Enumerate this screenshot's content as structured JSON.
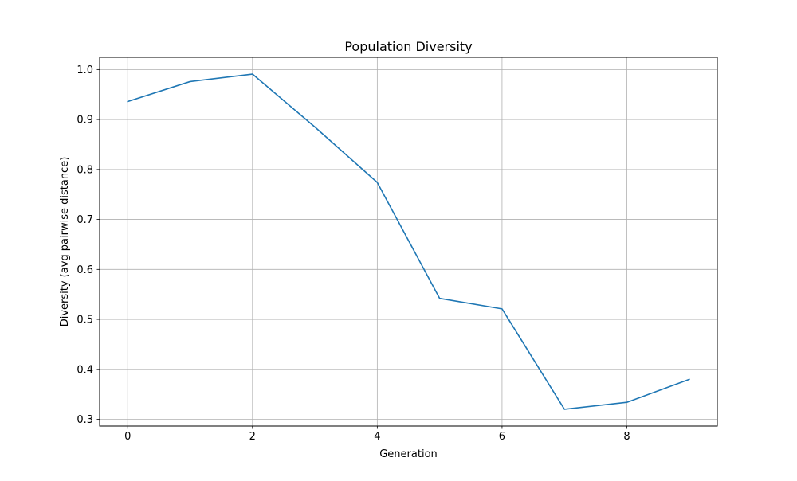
{
  "chart_data": {
    "type": "line",
    "title": "Population Diversity",
    "xlabel": "Generation",
    "ylabel": "Diversity (avg pairwise distance)",
    "x": [
      0,
      1,
      2,
      3,
      4,
      5,
      6,
      7,
      8,
      9
    ],
    "series": [
      {
        "values": [
          0.936,
          0.976,
          0.991,
          0.885,
          0.774,
          0.542,
          0.521,
          0.32,
          0.334,
          0.38
        ],
        "color": "#1f77b4"
      }
    ],
    "xlim": [
      -0.45,
      9.45
    ],
    "ylim": [
      0.2865,
      1.0245
    ],
    "xticks": [
      0,
      2,
      4,
      6,
      8
    ],
    "xtick_labels": [
      "0",
      "2",
      "4",
      "6",
      "8"
    ],
    "yticks": [
      0.3,
      0.4,
      0.5,
      0.6,
      0.7,
      0.8,
      0.9,
      1.0
    ],
    "ytick_labels": [
      "0.3",
      "0.4",
      "0.5",
      "0.6",
      "0.7",
      "0.8",
      "0.9",
      "1.0"
    ],
    "grid": true,
    "grid_color": "#b0b0b0",
    "axis_color": "#000000",
    "legend": false
  }
}
